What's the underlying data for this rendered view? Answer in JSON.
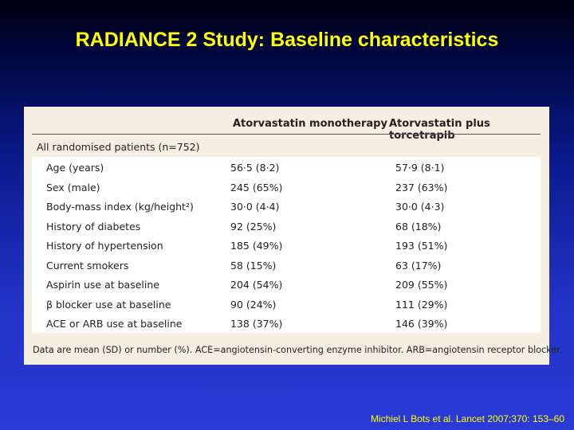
{
  "slide": {
    "title": "RADIANCE 2 Study: Baseline characteristics",
    "citation": "Michiel L Bots et al. Lancet 2007;370: 153–60"
  },
  "table": {
    "columns": [
      "Atorvastatin monotherapy",
      "Atorvastatin plus torcetrapib"
    ],
    "section": "All randomised patients (n=752)",
    "rows": [
      {
        "label": "Age (years)",
        "mono": "56·5 (8·2)",
        "combo": "57·9 (8·1)"
      },
      {
        "label": "Sex (male)",
        "mono": "245 (65%)",
        "combo": "237 (63%)"
      },
      {
        "label": "Body-mass index (kg/height²)",
        "mono": "30·0 (4·4)",
        "combo": "30·0 (4·3)"
      },
      {
        "label": "History of diabetes",
        "mono": "92 (25%)",
        "combo": "68 (18%)"
      },
      {
        "label": "History of hypertension",
        "mono": "185 (49%)",
        "combo": "193 (51%)"
      },
      {
        "label": "Current smokers",
        "mono": "58 (15%)",
        "combo": "63 (17%)"
      },
      {
        "label": "Aspirin use at baseline",
        "mono": "204 (54%)",
        "combo": "209 (55%)"
      },
      {
        "label": "β blocker use at baseline",
        "mono": "90 (24%)",
        "combo": "111 (29%)"
      },
      {
        "label": "ACE or ARB use at baseline",
        "mono": "138 (37%)",
        "combo": "146 (39%)"
      }
    ],
    "footnote": "Data are mean (SD) or number (%). ACE=angiotensin-converting enzyme inhibitor. ARB=angiotensin receptor blocker."
  },
  "colors": {
    "title": "#ffff00",
    "panel": "#f5eee3",
    "background_top": "#000010",
    "background_bottom": "#2a3ad6"
  }
}
